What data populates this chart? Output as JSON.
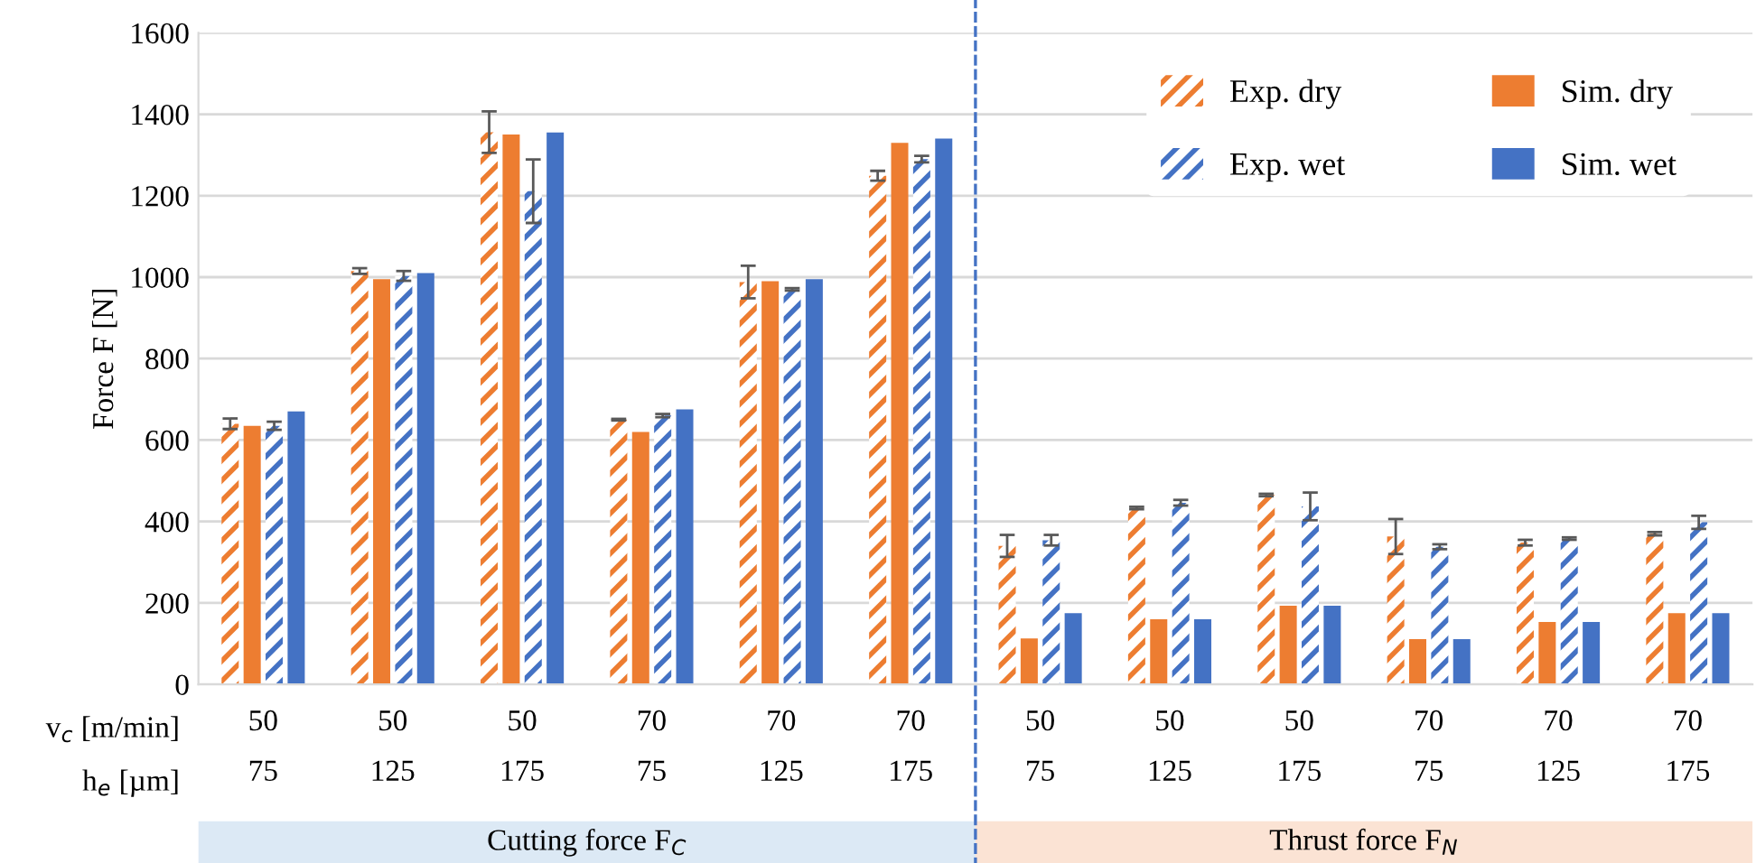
{
  "chart_data": {
    "type": "bar",
    "ylabel": "Force F [N]",
    "categories": [
      "50\n75",
      "50\n125",
      "50\n175",
      "70\n75",
      "70\n125",
      "70\n175",
      "50\n75",
      "50\n125",
      "50\n175",
      "70\n75",
      "70\n125",
      "70\n175"
    ],
    "series": [
      {
        "name": "Exp. dry",
        "color": "#ed7d31",
        "values": [
          640,
          1015,
          1356,
          650,
          988,
          1249,
          340,
          433,
          465,
          363,
          348,
          370
        ],
        "errors": [
          13,
          7,
          51,
          2,
          40,
          12,
          27,
          3,
          3,
          43,
          7,
          4
        ]
      },
      {
        "name": "Sim. dry",
        "color": "#ed7d31",
        "values": [
          635,
          995,
          1350,
          620,
          990,
          1330,
          113,
          160,
          193,
          111,
          153,
          175
        ]
      },
      {
        "name": "Exp. wet",
        "color": "#4472c4",
        "values": [
          635,
          1003,
          1211,
          660,
          970,
          1290,
          354,
          446,
          437,
          338,
          358,
          398
        ],
        "errors": [
          10,
          12,
          78,
          4,
          3,
          8,
          13,
          7,
          34,
          6,
          3,
          16
        ]
      },
      {
        "name": "Sim. wet",
        "color": "#4472c4",
        "values": [
          670,
          1010,
          1355,
          675,
          995,
          1340,
          175,
          160,
          193,
          111,
          153,
          175
        ]
      }
    ],
    "ylim": [
      0,
      1600
    ],
    "yticks": [
      0,
      200,
      400,
      600,
      800,
      1000,
      1200,
      1400,
      1600
    ],
    "grid": "y",
    "legend": "top right",
    "annotations": [
      "v$_{c}$ [m/min]",
      "h$_{e}$ [µm]",
      "Cutting force F$_{C}$",
      "Thrust force F$_{N}$"
    ]
  }
}
